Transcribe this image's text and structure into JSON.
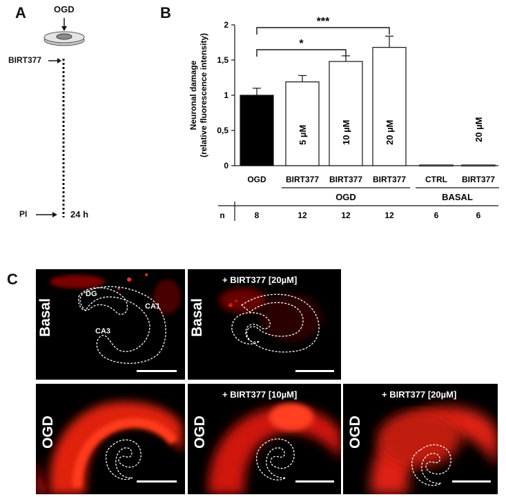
{
  "panels": {
    "a": "A",
    "b": "B",
    "c": "C"
  },
  "schematic": {
    "top_label": "OGD",
    "drug_label": "BIRT377",
    "pi_label": "PI",
    "time_label": "24 h"
  },
  "chart_data": {
    "type": "bar",
    "ylabel_line1": "Neuronal damage",
    "ylabel_line2": "(relative fluorescence intensity)",
    "ylim": [
      0,
      2
    ],
    "yticks": [
      {
        "value": 0,
        "label": "0"
      },
      {
        "value": 0.5,
        "label": "0,5"
      },
      {
        "value": 1,
        "label": "1"
      },
      {
        "value": 1.5,
        "label": "1,5"
      },
      {
        "value": 2,
        "label": "2"
      }
    ],
    "categories": [
      "OGD",
      "BIRT377",
      "BIRT377",
      "BIRT377",
      "CTRL",
      "BIRT377"
    ],
    "values": [
      1.0,
      1.19,
      1.48,
      1.68,
      0.01,
      0.01
    ],
    "errors": [
      0.1,
      0.09,
      0.08,
      0.16,
      0.0,
      0.0
    ],
    "fills": [
      "#000000",
      "#ffffff",
      "#ffffff",
      "#ffffff",
      "#ffffff",
      "#ffffff"
    ],
    "dose_labels": [
      "",
      "5 µM",
      "10 µM",
      "20 µM",
      "",
      "20 µM"
    ],
    "groups": [
      {
        "label": "OGD",
        "from": 1,
        "to": 3
      },
      {
        "label": "BASAL",
        "from": 4,
        "to": 5
      }
    ],
    "n_label": "n",
    "n_values": [
      "8",
      "12",
      "12",
      "12",
      "6",
      "6"
    ],
    "significance": [
      {
        "from": 0,
        "to": 2,
        "label": "*"
      },
      {
        "from": 0,
        "to": 3,
        "label": "***"
      }
    ]
  },
  "micrographs": [
    {
      "side": "Basal",
      "title": "",
      "regions": [
        "DG",
        "CA1",
        "CA3"
      ]
    },
    {
      "side": "Basal",
      "title": "+ BIRT377 [20µM]",
      "regions": []
    },
    {
      "side": "OGD",
      "title": "",
      "regions": []
    },
    {
      "side": "OGD",
      "title": "+ BIRT377 [10µM]",
      "regions": []
    },
    {
      "side": "OGD",
      "title": "+ BIRT377 [20µM]",
      "regions": []
    }
  ],
  "colors": {
    "fluorescence": "#ff2a1a",
    "outline": "#ffffff",
    "background": "#000000"
  }
}
